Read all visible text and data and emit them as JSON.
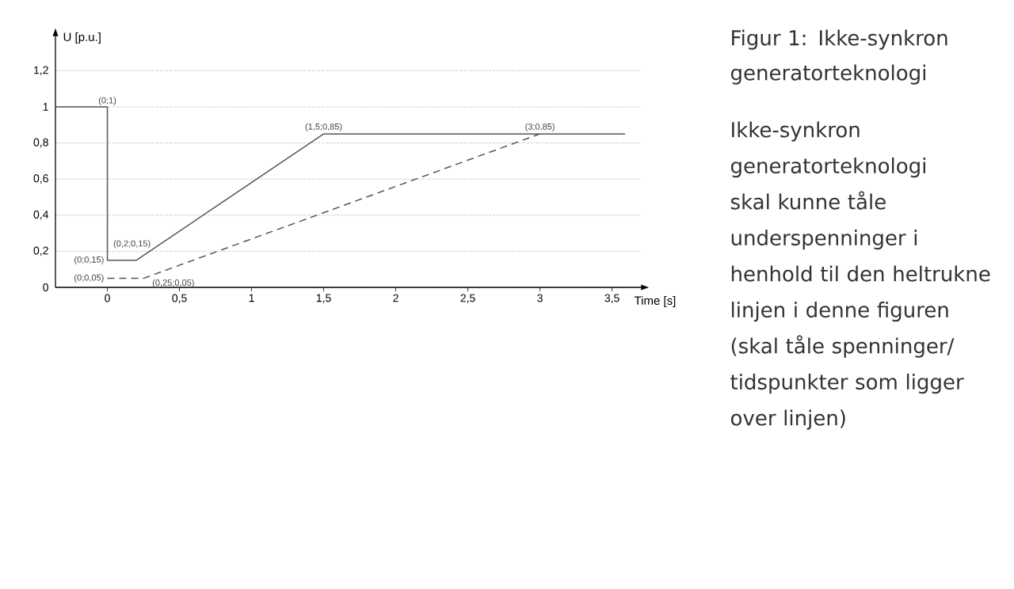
{
  "chart_data": {
    "type": "line",
    "title": "Figur 1: Ikke-synkron generatorteknologi",
    "xlabel": "Time [s]",
    "ylabel": "U [p.u.]",
    "series": [
      {
        "color": "#555555",
        "line_style": "solid",
        "x": [
          -0.36,
          0,
          0,
          0.2,
          1.5,
          3.59
        ],
        "values": [
          1,
          1,
          0.15,
          0.15,
          0.85,
          0.85
        ]
      },
      {
        "color": "#555555",
        "line_style": "dashed",
        "x": [
          0,
          0.25,
          3
        ],
        "values": [
          0.05,
          0.05,
          0.85
        ]
      }
    ],
    "xlim": [
      -0.36,
      3.7
    ],
    "ylim": [
      0,
      1.39
    ],
    "xticks": [
      0,
      {
        "value": 0.5,
        "label": "0,5"
      },
      1,
      {
        "value": 1.5,
        "label": "1,5"
      },
      2,
      {
        "value": 2.5,
        "label": "2,5"
      },
      3,
      {
        "value": 3.5,
        "label": "3,5"
      }
    ],
    "yticks": [
      0,
      {
        "value": 0.2,
        "label": "0,2"
      },
      {
        "value": 0.4,
        "label": "0,4"
      },
      {
        "value": 0.6,
        "label": "0,6"
      },
      {
        "value": 0.8,
        "label": "0,8"
      },
      1,
      {
        "value": 1.2,
        "label": "1,2"
      }
    ],
    "grid": "y",
    "marker": "none",
    "annotations": [
      {
        "text": "(0;1)",
        "x": 0,
        "y": 1
      },
      {
        "text": "(0;0,15)",
        "x": 0,
        "y": 0.15
      },
      {
        "text": "(0;0,05)",
        "x": 0,
        "y": 0.05
      },
      {
        "text": "(0,2;0,15)",
        "x": 0.2,
        "y": 0.15
      },
      {
        "text": "(0,25;0,05)",
        "x": 0.25,
        "y": 0.05
      },
      {
        "text": "(1,5;0,85)",
        "x": 1.5,
        "y": 0.85
      },
      {
        "text": "(3;0,85)",
        "x": 3,
        "y": 0.85
      },
      "Ikke-synkron generatorteknologi skal kunne tåle underspenninger i henhold til den heltrukne linjen i denne figuren (skal tåle spenninger/ tidspunkter som ligger over linjen)"
    ]
  }
}
